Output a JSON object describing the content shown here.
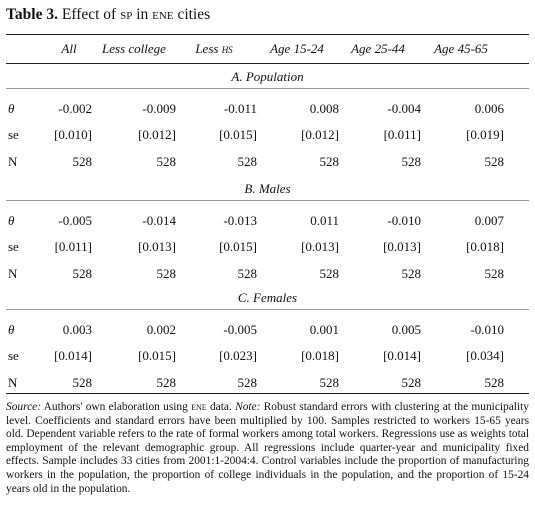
{
  "title": {
    "label": "Table 3.",
    "text1": "Effect of",
    "sc1": "sp",
    "text2": "in",
    "sc2": "ene",
    "text3": "cities"
  },
  "columns": [
    {
      "text": "All"
    },
    {
      "text": "Less college"
    },
    {
      "text": "Less",
      "smallcaps": "hs"
    },
    {
      "text": "Age 15-24"
    },
    {
      "text": "Age 25-44"
    },
    {
      "text": "Age 45-65"
    }
  ],
  "panels": [
    {
      "label": "A. Population",
      "rows": [
        [
          "θ",
          "-0.002",
          "-0.009",
          "-0.011",
          "0.008",
          "-0.004",
          "0.006"
        ],
        [
          "se",
          "[0.010]",
          "[0.012]",
          "[0.015]",
          "[0.012]",
          "[0.011]",
          "[0.019]"
        ],
        [
          "N",
          "528",
          "528",
          "528",
          "528",
          "528",
          "528"
        ]
      ]
    },
    {
      "label": "B. Males",
      "rows": [
        [
          "θ",
          "-0.005",
          "-0.014",
          "-0.013",
          "0.011",
          "-0.010",
          "0.007"
        ],
        [
          "se",
          "[0.011]",
          "[0.013]",
          "[0.015]",
          "[0.013]",
          "[0.013]",
          "[0.018]"
        ],
        [
          "N",
          "528",
          "528",
          "528",
          "528",
          "528",
          "528"
        ]
      ]
    },
    {
      "label": "C. Females",
      "rows": [
        [
          "θ",
          "0.003",
          "0.002",
          "-0.005",
          "0.001",
          "0.005",
          "-0.010"
        ],
        [
          "se",
          "[0.014]",
          "[0.015]",
          "[0.023]",
          "[0.018]",
          "[0.014]",
          "[0.034]"
        ],
        [
          "N",
          "528",
          "528",
          "528",
          "528",
          "528",
          "528"
        ]
      ]
    }
  ],
  "note": {
    "source_label": "Source:",
    "source_text": "Authors' own elaboration using",
    "source_sc": "ene",
    "source_end": "data.",
    "note_label": "Note:",
    "note_text": "Robust standard errors with clustering at the municipality level. Coefficients and standard errors have been multiplied by 100. Samples restricted to workers 15-65 years old. Dependent variable refers to the rate of formal workers among total workers. Regressions use as weights total employment of the relevant demographic group. All regressions include quarter-year and municipality fixed effects. Sample includes 33 cities from 2001:1-2004:4. Control variables include the proportion of manufacturing workers in the population, the proportion of college individuals in the population, and the proportion of 15-24 years old in the population."
  }
}
